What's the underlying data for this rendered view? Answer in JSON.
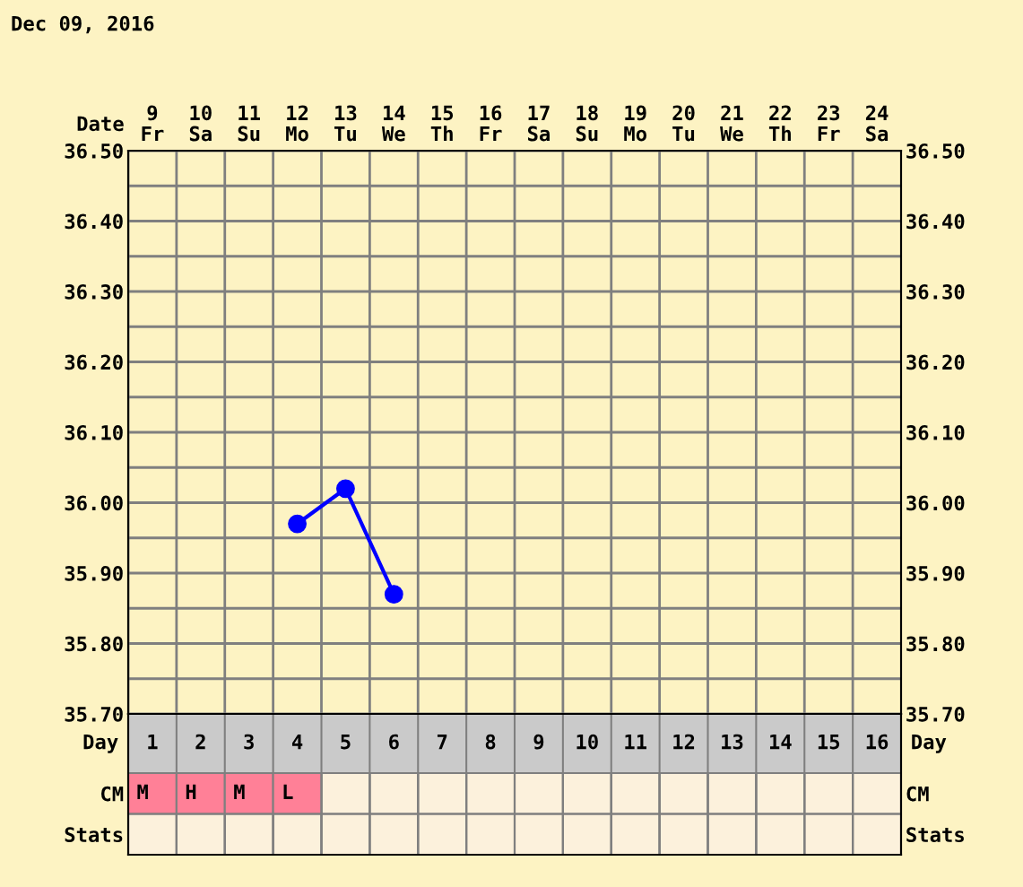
{
  "chart_data": [
    {
      "type": "line",
      "title": "Dec 09, 2016",
      "xlabel": "Date",
      "categories": [
        "9\nFr",
        "10\nSa",
        "11\nSu",
        "12\nMo",
        "13\nTu",
        "14\nWe",
        "15\nTh",
        "16\nFr",
        "17\nSa",
        "18\nSu",
        "19\nMo",
        "20\nTu",
        "21\nWe",
        "22\nTh",
        "23\nFr",
        "24\nSa"
      ],
      "series": [
        {
          "color": "#0000ff",
          "values": [
            null,
            null,
            null,
            35.97,
            36.02,
            35.87,
            null,
            null,
            null,
            null,
            null,
            null,
            null,
            null,
            null,
            null
          ]
        }
      ],
      "marker": "circle",
      "line_style": "solid",
      "grid": true,
      "legend": false,
      "ylim": [
        35.7,
        36.5
      ],
      "yticks": [
        {
          "value": 35.7,
          "label": "35.70"
        },
        {
          "value": 35.75,
          "label": null
        },
        {
          "value": 35.8,
          "label": "35.80"
        },
        {
          "value": 35.85,
          "label": null
        },
        {
          "value": 35.9,
          "label": "35.90"
        },
        {
          "value": 35.95,
          "label": null
        },
        {
          "value": 36.0,
          "label": "36.00"
        },
        {
          "value": 36.05,
          "label": null
        },
        {
          "value": 36.1,
          "label": "36.10"
        },
        {
          "value": 36.15,
          "label": null
        },
        {
          "value": 36.2,
          "label": "36.20"
        },
        {
          "value": 36.25,
          "label": null
        },
        {
          "value": 36.3,
          "label": "36.30"
        },
        {
          "value": 36.35,
          "label": null
        },
        {
          "value": 36.4,
          "label": "36.40"
        },
        {
          "value": 36.45,
          "label": null
        },
        {
          "value": 36.5,
          "label": "36.50"
        }
      ],
      "y2lim": [
        35.7,
        36.5
      ],
      "y2ticks": [
        {
          "value": 35.7,
          "label": "35.70"
        },
        {
          "value": 35.8,
          "label": "35.80"
        },
        {
          "value": 35.9,
          "label": "35.90"
        },
        {
          "value": 36.0,
          "label": "36.00"
        },
        {
          "value": 36.1,
          "label": "36.10"
        },
        {
          "value": 36.2,
          "label": "36.20"
        },
        {
          "value": 36.3,
          "label": "36.30"
        },
        {
          "value": 36.4,
          "label": "36.40"
        },
        {
          "value": 36.5,
          "label": "36.50"
        }
      ]
    },
    {
      "type": "heatmap",
      "xlabel": "Day",
      "color": "#ff8097",
      "categories": [
        "1",
        "2",
        "3",
        "4",
        "5",
        "6",
        "7",
        "8",
        "9",
        "10",
        "11",
        "12",
        "13",
        "14",
        "15",
        "16"
      ],
      "y_categories": [
        "CM",
        "Stats"
      ],
      "y2_categories": [
        "CM",
        "Stats"
      ],
      "cells": [
        [
          null,
          null,
          null,
          null,
          null,
          null,
          null,
          null,
          null,
          null,
          null,
          null,
          null,
          null,
          null,
          null
        ],
        [
          null,
          null,
          null,
          null,
          null,
          null,
          null,
          null,
          null,
          null,
          null,
          null,
          null,
          null,
          null,
          null
        ]
      ],
      "cell_labels": [
        [
          "M",
          "H",
          "M",
          "L",
          null,
          null,
          null,
          null,
          null,
          null,
          null,
          null,
          null,
          null,
          null,
          null
        ],
        [
          null,
          null,
          null,
          null,
          null,
          null,
          null,
          null,
          null,
          null,
          null,
          null,
          null,
          null,
          null,
          null
        ]
      ]
    }
  ]
}
